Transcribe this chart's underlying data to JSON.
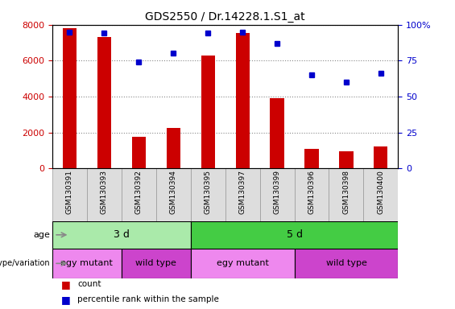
{
  "title": "GDS2550 / Dr.14228.1.S1_at",
  "samples": [
    "GSM130391",
    "GSM130393",
    "GSM130392",
    "GSM130394",
    "GSM130395",
    "GSM130397",
    "GSM130399",
    "GSM130396",
    "GSM130398",
    "GSM130400"
  ],
  "counts": [
    7800,
    7300,
    1750,
    2250,
    6300,
    7550,
    3900,
    1100,
    950,
    1200
  ],
  "percentile_ranks": [
    95,
    94,
    74,
    80,
    94,
    95,
    87,
    65,
    60,
    66
  ],
  "ylim_left": [
    0,
    8000
  ],
  "ylim_right": [
    0,
    100
  ],
  "yticks_left": [
    0,
    2000,
    4000,
    6000,
    8000
  ],
  "yticks_right": [
    0,
    25,
    50,
    75,
    100
  ],
  "bar_color": "#cc0000",
  "dot_color": "#0000cc",
  "age_groups": [
    {
      "label": "3 d",
      "start": 0,
      "end": 4,
      "color": "#aaeaaa"
    },
    {
      "label": "5 d",
      "start": 4,
      "end": 10,
      "color": "#44cc44"
    }
  ],
  "genotype_groups": [
    {
      "label": "egy mutant",
      "start": 0,
      "end": 2,
      "color": "#ee88ee"
    },
    {
      "label": "wild type",
      "start": 2,
      "end": 4,
      "color": "#cc44cc"
    },
    {
      "label": "egy mutant",
      "start": 4,
      "end": 7,
      "color": "#ee88ee"
    },
    {
      "label": "wild type",
      "start": 7,
      "end": 10,
      "color": "#cc44cc"
    }
  ],
  "legend_count_label": "count",
  "legend_pct_label": "percentile rank within the sample",
  "label_age": "age",
  "label_genotype": "genotype/variation",
  "grid_color": "#888888",
  "background_color": "#ffffff",
  "tick_label_color_left": "#cc0000",
  "tick_label_color_right": "#0000cc"
}
